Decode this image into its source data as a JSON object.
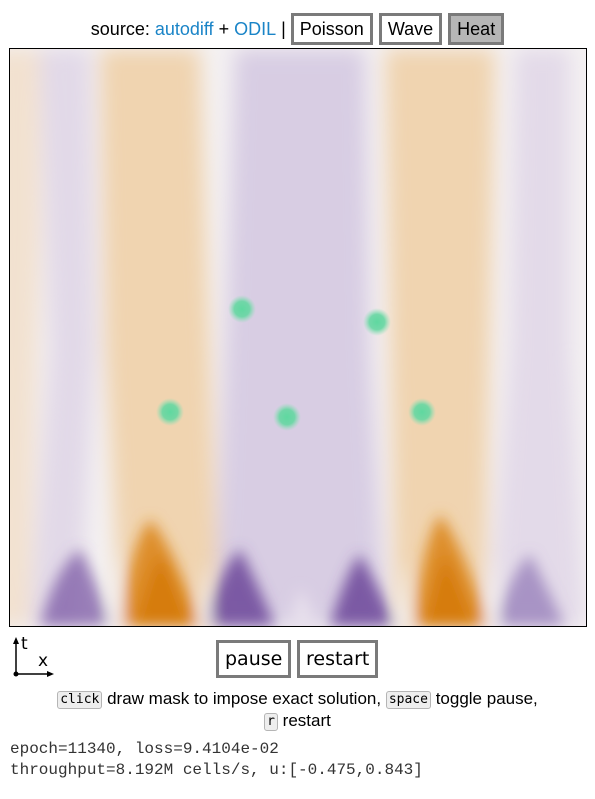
{
  "header": {
    "source_prefix": "source:",
    "link_autodiff": "autodiff",
    "plus": "+",
    "link_odil": "ODIL",
    "separator": "|",
    "modes": [
      {
        "label": "Poisson",
        "active": false
      },
      {
        "label": "Wave",
        "active": false
      },
      {
        "label": "Heat",
        "active": true
      }
    ]
  },
  "axes_icon": {
    "t_label": "t",
    "x_label": "x"
  },
  "controls": {
    "pause_label": "pause",
    "restart_label": "restart"
  },
  "help": {
    "key_click": "click",
    "text_click": " draw mask to impose exact solution, ",
    "key_space": "space",
    "text_space": " toggle pause,",
    "key_r": "r",
    "text_r": " restart"
  },
  "status": {
    "line1": "epoch=11340, loss=9.4104e-02",
    "line2": "throughput=8.192M cells/s, u:[-0.475,0.843]"
  },
  "colors": {
    "positive": "#d9800f",
    "negative": "#5a2f8f",
    "neutral": "#f4f1f2",
    "mask_point": "#5fd8a0",
    "link": "#1a84c7"
  }
}
